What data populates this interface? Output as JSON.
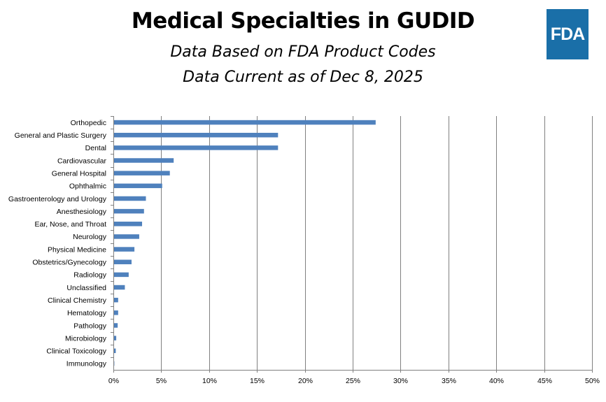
{
  "header": {
    "title": "Medical Specialties in GUDID",
    "subtitle_1": "Data Based on FDA Product Codes",
    "subtitle_2": "Data Current as of Dec 8, 2025",
    "logo_text": "FDA"
  },
  "colors": {
    "bar": "#4f81bd",
    "grid": "#808080",
    "logo_bg": "#1a6fa8"
  },
  "chart_data": {
    "type": "bar",
    "orientation": "horizontal",
    "title": "Medical Specialties in GUDID",
    "xlabel": "",
    "ylabel": "",
    "xlim": [
      0,
      50
    ],
    "xticks": [
      "0%",
      "5%",
      "10%",
      "15%",
      "20%",
      "25%",
      "30%",
      "35%",
      "40%",
      "45%",
      "50%"
    ],
    "grid": "vertical",
    "categories": [
      "Orthopedic",
      "General and Plastic Surgery",
      "Dental",
      "Cardiovascular",
      "General Hospital",
      "Ophthalmic",
      "Gastroenterology and Urology",
      "Anesthesiology",
      "Ear, Nose, and Throat",
      "Neurology",
      "Physical Medicine",
      "Obstetrics/Gynecology",
      "Radiology",
      "Unclassified",
      "Clinical Chemistry",
      "Hematology",
      "Pathology",
      "Microbiology",
      "Clinical Toxicology",
      "Immunology"
    ],
    "values": [
      27.4,
      17.2,
      17.2,
      6.3,
      5.9,
      5.1,
      3.4,
      3.2,
      3.0,
      2.7,
      2.2,
      1.9,
      1.6,
      1.2,
      0.5,
      0.5,
      0.45,
      0.3,
      0.25,
      0.1
    ]
  }
}
